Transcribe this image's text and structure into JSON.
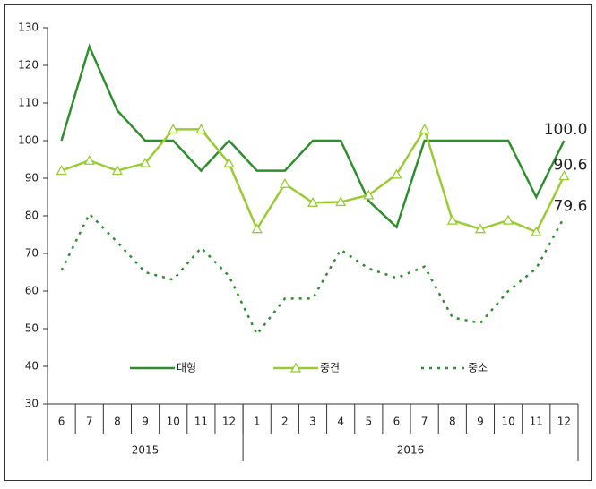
{
  "chart_data": {
    "type": "line",
    "categories": [
      "6",
      "7",
      "8",
      "9",
      "10",
      "11",
      "12",
      "1",
      "2",
      "3",
      "4",
      "5",
      "6",
      "7",
      "8",
      "9",
      "10",
      "11",
      "12"
    ],
    "groups": [
      {
        "name": "2015",
        "count": 7
      },
      {
        "name": "2016",
        "count": 12
      }
    ],
    "series": [
      {
        "name": "대형",
        "color": "#2f8f2f",
        "style": "solid",
        "marker": null,
        "values": [
          100,
          125,
          108,
          100,
          100,
          92,
          100,
          92,
          92,
          100,
          100,
          84,
          77,
          100,
          100,
          100,
          100,
          85,
          100
        ],
        "value_labels": [
          null,
          null,
          null,
          null,
          null,
          null,
          null,
          null,
          null,
          null,
          null,
          null,
          null,
          null,
          null,
          null,
          null,
          null,
          "100.0"
        ]
      },
      {
        "name": "중견",
        "color": "#99cc33",
        "style": "solid",
        "marker": "triangle",
        "values": [
          92,
          94.7,
          92,
          94,
          103,
          103,
          94,
          76.5,
          88.5,
          83.5,
          83.7,
          85.5,
          91,
          103,
          78.8,
          76.5,
          78.8,
          75.7,
          90.6
        ],
        "value_labels": [
          null,
          null,
          null,
          null,
          null,
          null,
          null,
          null,
          null,
          null,
          null,
          null,
          null,
          null,
          null,
          null,
          null,
          null,
          "90.6"
        ]
      },
      {
        "name": "중소",
        "color": "#2f8f2f",
        "style": "dotted",
        "marker": null,
        "values": [
          65.5,
          80.5,
          73,
          65,
          63,
          71.5,
          64,
          48.5,
          58,
          58,
          71,
          66,
          63.5,
          66.5,
          53,
          51.5,
          60,
          66,
          79.6
        ],
        "value_labels": [
          null,
          null,
          null,
          null,
          null,
          null,
          null,
          null,
          null,
          null,
          null,
          null,
          null,
          null,
          null,
          null,
          null,
          null,
          "79.6"
        ]
      }
    ],
    "ylim": [
      30,
      130
    ],
    "yticks": [
      30,
      40,
      50,
      60,
      70,
      80,
      90,
      100,
      110,
      120,
      130
    ],
    "grid": false
  }
}
